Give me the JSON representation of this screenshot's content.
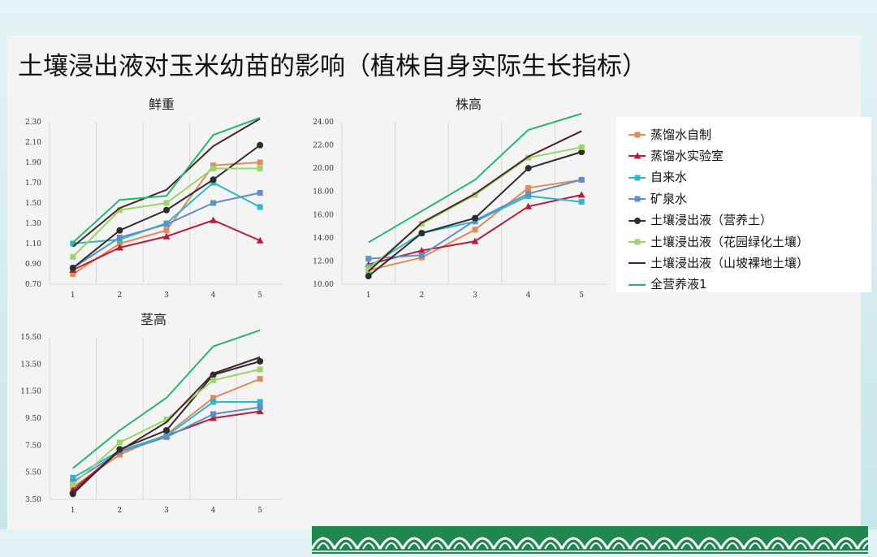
{
  "slide": {
    "title": "土壤浸出液对玉米幼苗的影响（植株自身实际生长指标）"
  },
  "series_meta": [
    {
      "name": "蒸馏水自制",
      "color": "#e08b5a",
      "marker": "square"
    },
    {
      "name": "蒸馏水实验室",
      "color": "#b81d3c",
      "marker": "triangle"
    },
    {
      "name": "自来水",
      "color": "#2fb6cf",
      "marker": "square"
    },
    {
      "name": "矿泉水",
      "color": "#5f8fc4",
      "marker": "square"
    },
    {
      "name": "土壤浸出液（营养土）",
      "color": "#2d2d2d",
      "marker": "circle"
    },
    {
      "name": "土壤浸出液（花园绿化土壤）",
      "color": "#9bd56a",
      "marker": "square"
    },
    {
      "name": "土壤浸出液（山坡裸地土壤）",
      "color": "#4d2222",
      "marker": "none"
    },
    {
      "name": "全营养液1",
      "color": "#27b86d",
      "marker": "none"
    }
  ],
  "chart_data": [
    {
      "type": "line",
      "title": "鲜重",
      "x": [
        1,
        2,
        3,
        4,
        5
      ],
      "ylim": [
        0.7,
        2.3
      ],
      "yticks": [
        "0.70",
        "0.90",
        "1.10",
        "1.30",
        "1.50",
        "1.70",
        "1.90",
        "2.10",
        "2.30"
      ],
      "grid": "vertical",
      "series": [
        {
          "name": "蒸馏水自制",
          "values": [
            0.8,
            1.1,
            1.23,
            1.87,
            1.9
          ]
        },
        {
          "name": "蒸馏水实验室",
          "values": [
            0.84,
            1.06,
            1.17,
            1.33,
            1.13
          ]
        },
        {
          "name": "自来水",
          "values": [
            1.1,
            1.14,
            1.3,
            1.7,
            1.46
          ]
        },
        {
          "name": "矿泉水",
          "values": [
            0.86,
            1.16,
            1.29,
            1.5,
            1.6
          ]
        },
        {
          "name": "土壤浸出液（营养土）",
          "values": [
            0.86,
            1.23,
            1.43,
            1.73,
            2.07
          ]
        },
        {
          "name": "土壤浸出液（花园绿化土壤）",
          "values": [
            0.97,
            1.43,
            1.5,
            1.84,
            1.84
          ]
        },
        {
          "name": "土壤浸出液（山坡裸地土壤）",
          "values": [
            1.07,
            1.45,
            1.63,
            2.06,
            2.33
          ]
        },
        {
          "name": "全营养液1",
          "values": [
            1.11,
            1.53,
            1.57,
            2.17,
            2.34
          ]
        }
      ]
    },
    {
      "type": "line",
      "title": "株高",
      "x": [
        1,
        2,
        3,
        4,
        5
      ],
      "ylim": [
        10.0,
        24.0
      ],
      "yticks": [
        "10.00",
        "12.00",
        "14.00",
        "16.00",
        "18.00",
        "20.00",
        "22.00",
        "24.00"
      ],
      "grid": "vertical",
      "series": [
        {
          "name": "蒸馏水自制",
          "values": [
            11.2,
            12.3,
            14.7,
            18.3,
            19.0
          ]
        },
        {
          "name": "蒸馏水实验室",
          "values": [
            11.7,
            12.9,
            13.7,
            16.7,
            17.7
          ]
        },
        {
          "name": "自来水",
          "values": [
            11.5,
            14.4,
            15.4,
            17.6,
            17.1
          ]
        },
        {
          "name": "矿泉水",
          "values": [
            12.2,
            12.5,
            15.5,
            17.8,
            19.0
          ]
        },
        {
          "name": "土壤浸出液（营养土）",
          "values": [
            10.7,
            14.4,
            15.7,
            20.0,
            21.4
          ]
        },
        {
          "name": "土壤浸出液（花园绿化土壤）",
          "values": [
            11.3,
            15.2,
            17.7,
            20.9,
            21.8
          ]
        },
        {
          "name": "土壤浸出液（山坡裸地土壤）",
          "values": [
            11.1,
            15.3,
            17.8,
            21.0,
            23.2
          ]
        },
        {
          "name": "全营养液1",
          "values": [
            13.6,
            16.3,
            19.0,
            23.3,
            24.7
          ]
        }
      ]
    },
    {
      "type": "line",
      "title": "茎高",
      "x": [
        1,
        2,
        3,
        4,
        5
      ],
      "ylim": [
        3.5,
        15.5
      ],
      "yticks": [
        "3.50",
        "5.50",
        "7.50",
        "9.50",
        "11.50",
        "13.50",
        "15.50"
      ],
      "grid": "vertical",
      "series": [
        {
          "name": "蒸馏水自制",
          "values": [
            4.4,
            6.8,
            8.3,
            11.0,
            12.4
          ]
        },
        {
          "name": "蒸馏水实验室",
          "values": [
            4.2,
            7.1,
            8.2,
            9.5,
            10.0
          ]
        },
        {
          "name": "自来水",
          "values": [
            5.1,
            7.1,
            8.2,
            10.7,
            10.7
          ]
        },
        {
          "name": "矿泉水",
          "values": [
            4.8,
            7.0,
            8.1,
            9.8,
            10.3
          ]
        },
        {
          "name": "土壤浸出液（营养土）",
          "values": [
            3.9,
            7.2,
            8.6,
            12.7,
            13.7
          ]
        },
        {
          "name": "土壤浸出液（花园绿化土壤）",
          "values": [
            4.6,
            7.7,
            9.4,
            12.3,
            13.1
          ]
        },
        {
          "name": "土壤浸出液（山坡裸地土壤）",
          "values": [
            4.0,
            7.1,
            9.2,
            12.8,
            14.0
          ]
        },
        {
          "name": "全营养液1",
          "values": [
            5.8,
            8.6,
            11.0,
            14.8,
            16.0
          ]
        }
      ]
    }
  ]
}
